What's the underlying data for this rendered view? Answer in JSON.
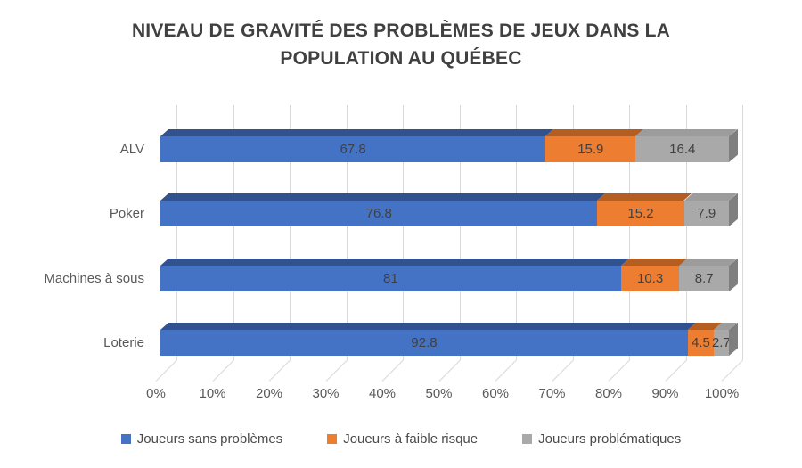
{
  "chart_data": {
    "type": "bar",
    "stacked": true,
    "percent_stacked": true,
    "orientation": "horizontal",
    "effect": "3d",
    "title": "NIVEAU DE GRAVITÉ DES PROBLÈMES DE JEUX DANS LA POPULATION AU QUÉBEC",
    "title_lines": [
      "NIVEAU DE GRAVITÉ DES PROBLÈMES DE JEUX DANS LA",
      "POPULATION AU QUÉBEC"
    ],
    "categories": [
      "ALV",
      "Poker",
      "Machines à sous",
      "Loterie"
    ],
    "series": [
      {
        "name": "Joueurs sans problèmes",
        "color": "#4472C4",
        "top_color": "#31518F",
        "values": [
          67.8,
          76.8,
          81,
          92.8
        ]
      },
      {
        "name": "Joueurs à faible risque",
        "color": "#ED7D31",
        "top_color": "#B55E22",
        "values": [
          15.9,
          15.2,
          10.3,
          4.5
        ]
      },
      {
        "name": "Joueurs problématiques",
        "color": "#A9A9A9",
        "top_color": "#9C9C9C",
        "values": [
          16.4,
          7.9,
          8.7,
          2.7
        ]
      }
    ],
    "data_labels": [
      [
        "67.8",
        "15.9",
        "16.4"
      ],
      [
        "76.8",
        "15.2",
        "7.9"
      ],
      [
        "81",
        "10.3",
        "8.7"
      ],
      [
        "92.8",
        "4.5",
        "2.7"
      ]
    ],
    "x_ticks": [
      "0%",
      "10%",
      "20%",
      "30%",
      "40%",
      "50%",
      "60%",
      "70%",
      "80%",
      "90%",
      "100%"
    ],
    "xlim": [
      0,
      100
    ],
    "grid": true,
    "legend_position": "bottom",
    "grid_color": "#D9D9D9",
    "end_cap_color": "#7F7F7F",
    "title_color": "#404040",
    "label_color": "#404040",
    "axis_text_color": "#595959",
    "legend_text_color": "#4A4A4A"
  }
}
